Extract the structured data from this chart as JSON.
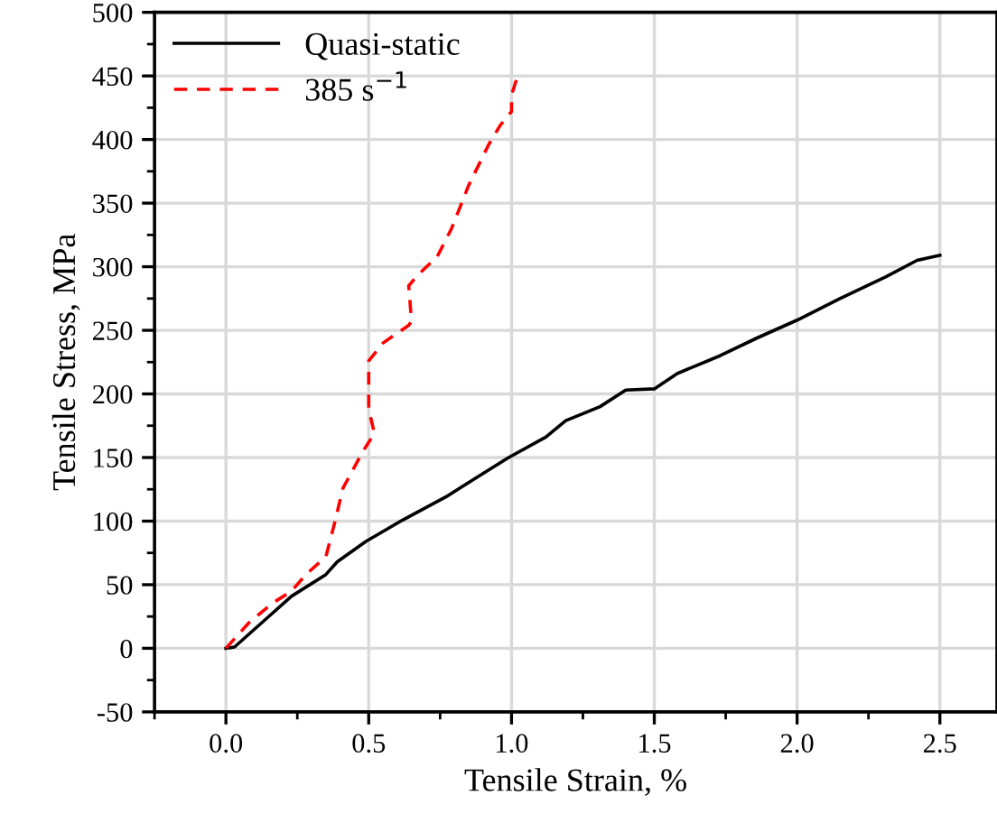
{
  "chart_data": {
    "type": "line",
    "xlabel": "Tensile Strain, %",
    "ylabel": "Tensile Stress, MPa",
    "xlim": [
      -0.25,
      2.7
    ],
    "xticks": [
      {
        "value": 0,
        "label": "0.0"
      },
      0.5,
      {
        "value": 1,
        "label": "1.0"
      },
      1.5,
      {
        "value": 2,
        "label": "2.0"
      },
      2.5
    ],
    "ylim": [
      -50,
      500
    ],
    "yticks": [
      -50,
      0,
      50,
      100,
      150,
      200,
      250,
      300,
      350,
      400,
      450,
      500
    ],
    "grid": true,
    "legend": "top left",
    "series": [
      {
        "name": "Quasi-static",
        "color": "#000000",
        "line_style": "solid",
        "x": [
          0,
          0.03,
          0.14,
          0.23,
          0.35,
          0.39,
          0.49,
          0.62,
          0.77,
          0.89,
          0.99,
          1.12,
          1.19,
          1.31,
          1.4,
          1.5,
          1.58,
          1.73,
          1.86,
          2.0,
          2.15,
          2.31,
          2.42,
          2.5
        ],
        "values": [
          0,
          1,
          23,
          41,
          58,
          68,
          84,
          101,
          119,
          136,
          150,
          166,
          179,
          190,
          203,
          204,
          216,
          230,
          244,
          258,
          275,
          292,
          305,
          309
        ]
      },
      {
        "name": "385 s$^{−1}$",
        "color": "#ff0000",
        "line_style": "dashed",
        "x": [
          0,
          0.08,
          0.16,
          0.23,
          0.28,
          0.35,
          0.38,
          0.41,
          0.48,
          0.52,
          0.5,
          0.5,
          0.55,
          0.64,
          0.65,
          0.64,
          0.67,
          0.74,
          0.79,
          0.85,
          0.92,
          0.96,
          1.0,
          1.0,
          1.02
        ],
        "values": [
          0,
          20,
          35,
          45,
          58,
          72,
          98,
          126,
          155,
          169,
          188,
          226,
          240,
          254,
          257,
          285,
          293,
          308,
          330,
          364,
          396,
          411,
          422,
          435,
          449
        ]
      }
    ]
  }
}
